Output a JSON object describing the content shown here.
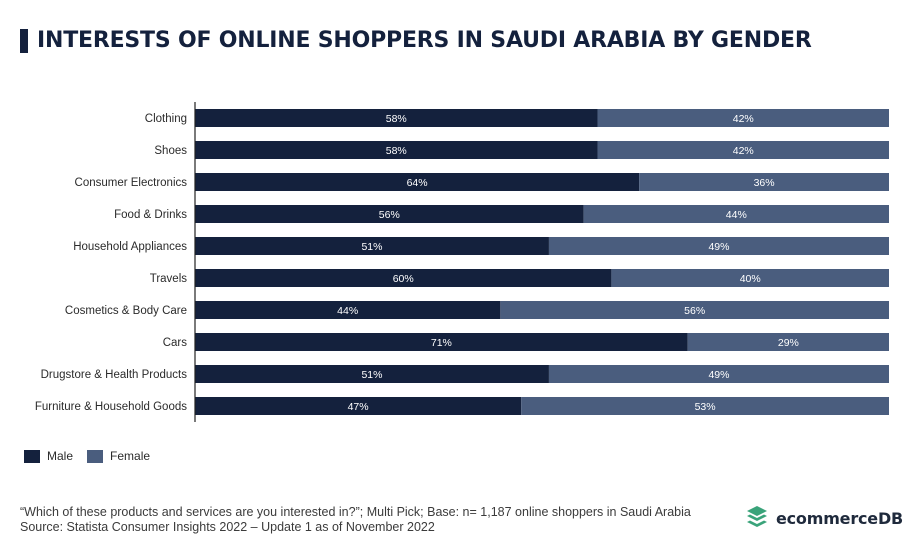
{
  "title": "INTERESTS OF ONLINE SHOPPERS IN SAUDI ARABIA BY GENDER",
  "colors": {
    "male": "#14213d",
    "female": "#4a5d7e",
    "brand": "#3aa37a",
    "title_bar": "#14213d"
  },
  "chart_data": {
    "type": "bar",
    "orientation": "horizontal",
    "stacked": true,
    "categories": [
      "Clothing",
      "Shoes",
      "Consumer Electronics",
      "Food & Drinks",
      "Household Appliances",
      "Travels",
      "Cosmetics & Body Care",
      "Cars",
      "Drugstore & Health Products",
      "Furniture & Household Goods"
    ],
    "series": [
      {
        "name": "Male",
        "values": [
          58,
          58,
          64,
          56,
          51,
          60,
          44,
          71,
          51,
          47
        ]
      },
      {
        "name": "Female",
        "values": [
          42,
          42,
          36,
          44,
          49,
          40,
          56,
          29,
          49,
          53
        ]
      }
    ],
    "value_suffix": "%",
    "xlim": [
      0,
      100
    ],
    "grid": false,
    "legend": "bottom-left"
  },
  "legend": {
    "male": "Male",
    "female": "Female"
  },
  "footnote": {
    "line1": "“Which of these products and services are you interested in?”; Multi Pick; Base: n= 1,187 online shoppers in Saudi Arabia",
    "line2": "Source: Statista Consumer Insights 2022 – Update 1 as of November 2022"
  },
  "brand": {
    "name": "ecommerceDB",
    "logo_icon": "stacked-chevrons-icon"
  }
}
